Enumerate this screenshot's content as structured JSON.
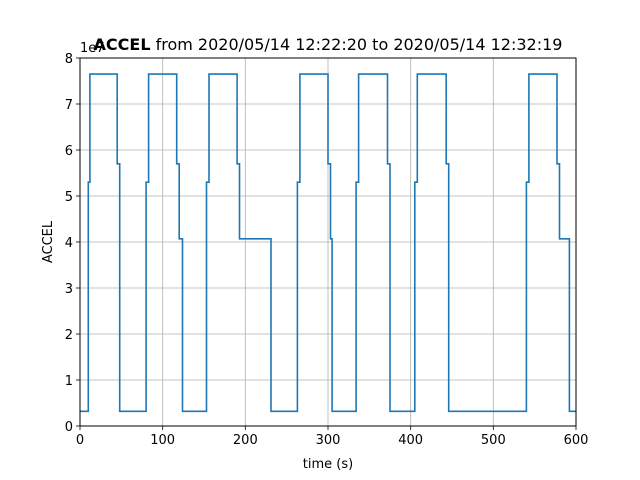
{
  "chart_data": {
    "type": "line",
    "title_bold": "ACCEL",
    "title_rest": " from 2020/05/14 12:22:20 to 2020/05/14 12:32:19",
    "xlabel": "time (s)",
    "ylabel": "ACCEL",
    "y_scale_note": "1e7",
    "xlim": [
      0,
      600
    ],
    "ylim": [
      0,
      8
    ],
    "xticks": [
      0,
      100,
      200,
      300,
      400,
      500,
      600
    ],
    "yticks": [
      0,
      1,
      2,
      3,
      4,
      5,
      6,
      7,
      8
    ],
    "grid": true,
    "line_color": "#1f77b4",
    "series": [
      {
        "style": "step",
        "x": [
          0,
          10,
          10,
          12,
          12,
          45,
          45,
          48,
          48,
          80,
          80,
          83,
          83,
          117,
          117,
          120,
          120,
          124,
          124,
          153,
          153,
          156,
          156,
          190,
          190,
          193,
          193,
          231,
          231,
          263,
          263,
          266,
          266,
          300,
          300,
          303,
          303,
          305,
          305,
          334,
          334,
          337,
          337,
          372,
          372,
          375,
          375,
          405,
          405,
          408,
          408,
          443,
          443,
          446,
          446,
          540,
          540,
          543,
          543,
          577,
          577,
          580,
          580,
          592,
          592,
          600
        ],
        "values": [
          0.32,
          0.32,
          5.3,
          5.3,
          7.65,
          7.65,
          5.7,
          5.7,
          0.32,
          0.32,
          5.3,
          5.3,
          7.65,
          7.65,
          5.7,
          5.7,
          4.07,
          4.07,
          0.32,
          0.32,
          5.3,
          5.3,
          7.65,
          7.65,
          5.7,
          5.7,
          4.07,
          4.07,
          0.32,
          0.32,
          5.3,
          5.3,
          7.65,
          7.65,
          5.7,
          5.7,
          4.07,
          4.07,
          0.32,
          0.32,
          5.3,
          5.3,
          7.65,
          7.65,
          5.7,
          5.7,
          0.32,
          0.32,
          5.3,
          5.3,
          7.65,
          7.65,
          5.7,
          5.7,
          0.32,
          0.32,
          5.3,
          5.3,
          7.65,
          7.65,
          5.7,
          5.7,
          4.07,
          4.07,
          0.32,
          0.32
        ]
      }
    ]
  }
}
